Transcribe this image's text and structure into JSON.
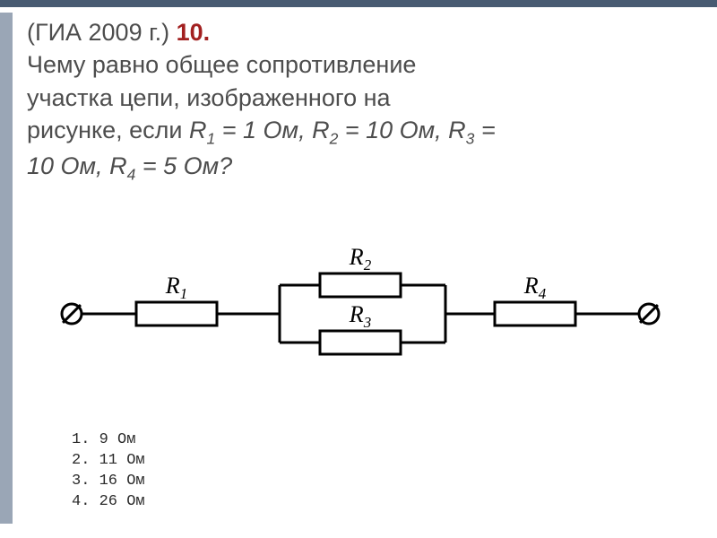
{
  "header": {
    "source": "(ГИА 2009 г.) ",
    "number": "10."
  },
  "question": {
    "line1": "Чему равно общее сопротивление",
    "line2": "участка цепи, изображенного на",
    "line3_prefix": "рисунке, если ",
    "r1_name": "R",
    "r1_sub": "1",
    "r1_val": " = 1 Ом, ",
    "r2_name": "R",
    "r2_sub": "2",
    "r2_val": " = 10 Ом, ",
    "r3_name": "R",
    "r3_sub": "3",
    "r3_val": " =",
    "line4_prefix": "10 Ом, ",
    "r4_name": "R",
    "r4_sub": "4",
    "r4_val": " = 5 Ом?"
  },
  "diagram": {
    "labels": {
      "r1": "R",
      "r1_sub": "1",
      "r2": "R",
      "r2_sub": "2",
      "r3": "R",
      "r3_sub": "3",
      "r4": "R",
      "r4_sub": "4"
    },
    "stroke_color": "#000000",
    "stroke_width": 3,
    "terminal_radius": 11,
    "resistor_w": 90,
    "resistor_h": 26
  },
  "answers": {
    "a1": "1. 9 Ом",
    "a2": "2. 11 Ом",
    "a3": "3. 16 Ом",
    "a4": "4. 26 Ом"
  },
  "colors": {
    "header_bar": "#485b72",
    "side_box": "#9aa6b6",
    "text": "#4d4d4d",
    "accent": "#a22020",
    "bg": "#ffffff"
  }
}
